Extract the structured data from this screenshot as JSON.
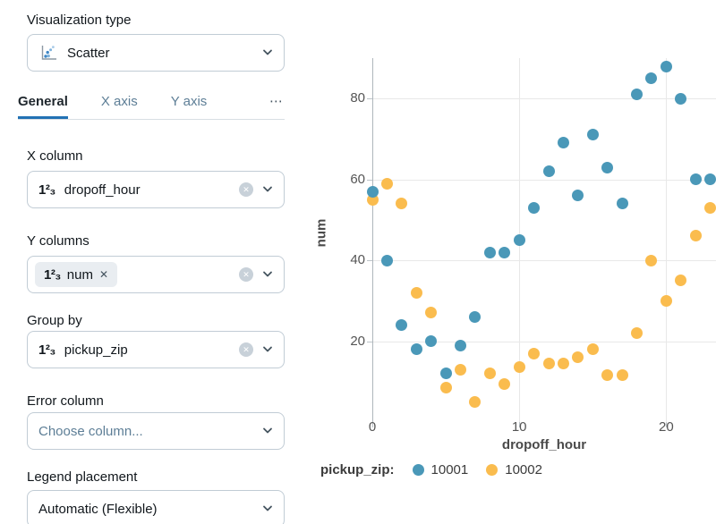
{
  "panel": {
    "viz_type": {
      "label": "Visualization type",
      "value": "Scatter"
    },
    "tabs": [
      {
        "label": "General",
        "active": true
      },
      {
        "label": "X axis",
        "active": false
      },
      {
        "label": "Y axis",
        "active": false
      }
    ],
    "tabs_overflow": "⋯",
    "x_column": {
      "label": "X column",
      "type_icon": "1²₃",
      "value": "dropoff_hour"
    },
    "y_columns": {
      "label": "Y columns",
      "type_icon": "1²₃",
      "value": "num",
      "remove_icon": "✕"
    },
    "group_by": {
      "label": "Group by",
      "type_icon": "1²₃",
      "value": "pickup_zip"
    },
    "error_column": {
      "label": "Error column",
      "placeholder": "Choose column..."
    },
    "legend_placement": {
      "label": "Legend placement",
      "value": "Automatic (Flexible)"
    },
    "clear_icon": "✕"
  },
  "chart_data": {
    "type": "scatter",
    "xlabel": "dropoff_hour",
    "ylabel": "num",
    "xlim": [
      0,
      23.4
    ],
    "ylim": [
      0,
      90
    ],
    "x_ticks": [
      0,
      10,
      20
    ],
    "y_ticks": [
      20,
      40,
      60,
      80
    ],
    "grid": true,
    "legend_title": "pickup_zip:",
    "legend_position": "bottom",
    "x": [
      0,
      1,
      2,
      3,
      4,
      5,
      6,
      7,
      8,
      9,
      10,
      11,
      12,
      13,
      14,
      15,
      16,
      17,
      18,
      19,
      20,
      21,
      22,
      23
    ],
    "series": [
      {
        "name": "10001",
        "color": "#4A98B8",
        "values": [
          57,
          40,
          24,
          18,
          20,
          12,
          19,
          26,
          42,
          42,
          45,
          53,
          62,
          69,
          56,
          71,
          63,
          54,
          81,
          85,
          88,
          80,
          60,
          60
        ]
      },
      {
        "name": "10002",
        "color": "#FABC4E",
        "values": [
          55,
          59,
          54,
          32,
          27,
          8.5,
          13,
          5,
          12,
          9.5,
          13.5,
          17,
          14.5,
          14.5,
          16,
          18,
          11.5,
          11.5,
          22,
          40,
          30,
          35,
          46,
          53
        ]
      }
    ]
  }
}
